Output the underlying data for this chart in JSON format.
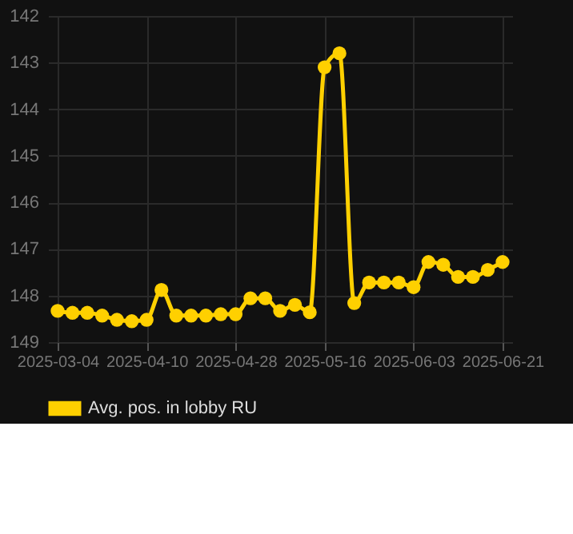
{
  "chart_data": {
    "type": "line",
    "categories": [
      "2025-03-04",
      null,
      null,
      null,
      null,
      null,
      "2025-04-10",
      null,
      null,
      null,
      null,
      null,
      "2025-04-28",
      null,
      null,
      null,
      null,
      null,
      "2025-05-16",
      null,
      null,
      null,
      null,
      null,
      "2025-06-03",
      null,
      null,
      null,
      null,
      null,
      "2025-06-21"
    ],
    "series": [
      {
        "name": "Avg. pos. in lobby RU",
        "color": "#ffd000",
        "values": [
          148.33,
          148.37,
          148.37,
          148.43,
          148.52,
          148.55,
          148.52,
          147.88,
          148.43,
          148.43,
          148.43,
          148.4,
          148.4,
          148.06,
          148.06,
          148.33,
          148.2,
          148.36,
          143.1,
          142.8,
          148.16,
          147.72,
          147.72,
          147.72,
          147.82,
          147.28,
          147.34,
          147.6,
          147.6,
          147.45,
          147.28
        ]
      }
    ],
    "ylim": [
      149,
      142
    ],
    "yticks": [
      142,
      143,
      144,
      145,
      146,
      147,
      148,
      149
    ],
    "grid": true,
    "legend": "bottom",
    "marker": "circle",
    "line_style": "solid"
  }
}
